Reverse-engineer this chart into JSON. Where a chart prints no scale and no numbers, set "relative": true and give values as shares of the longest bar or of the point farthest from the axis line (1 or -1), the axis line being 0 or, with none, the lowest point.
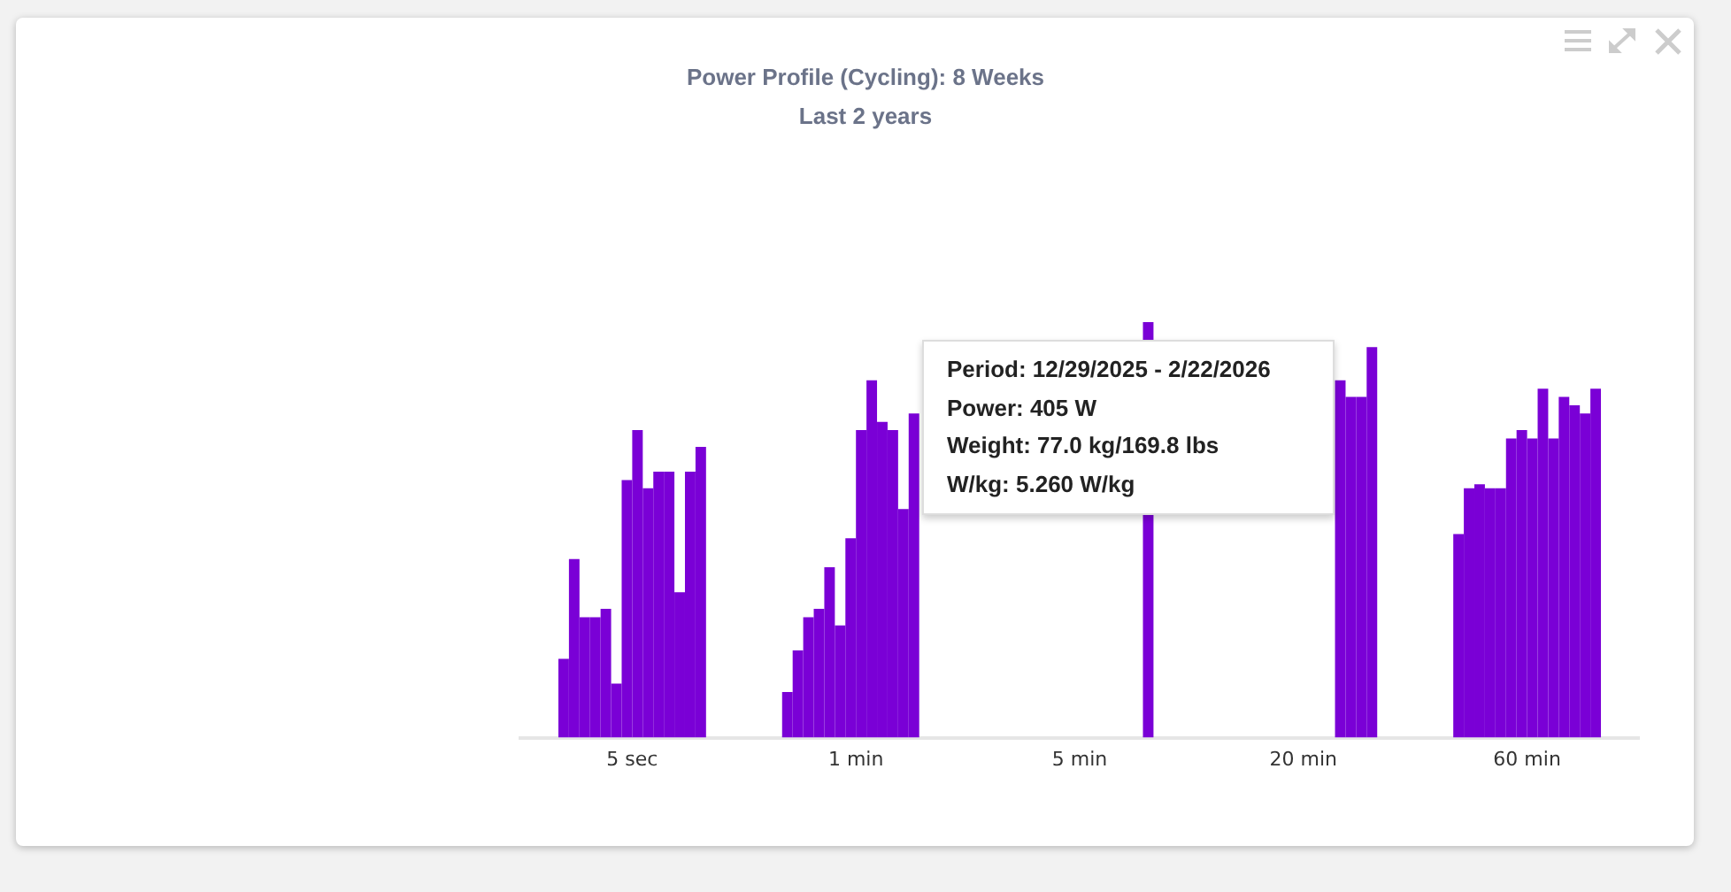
{
  "chart_data": {
    "type": "bar",
    "title": "Power Profile (Cycling): 8 Weeks",
    "subtitle": "Last 2 years",
    "relative": true,
    "legend": false,
    "grid": false,
    "categories": [
      "5 sec",
      "1 min",
      "5 min",
      "20 min",
      "60 min"
    ],
    "annotations": [
      "Period: 12/29/2025 - 2/22/2026",
      "Power: 405 W",
      "Weight: 77.0 kg/169.8 lbs",
      "W/kg: 5.260 W/kg"
    ],
    "series": [
      {
        "color": "#7a00d6",
        "values": [
          0.19,
          0.11,
          null,
          null,
          0.49
        ]
      },
      {
        "color": "#7a00d6",
        "values": [
          0.43,
          0.21,
          null,
          null,
          0.6
        ]
      },
      {
        "color": "#7a00d6",
        "values": [
          0.29,
          0.29,
          null,
          null,
          0.61
        ]
      },
      {
        "color": "#7a00d6",
        "values": [
          0.29,
          0.31,
          null,
          null,
          0.6
        ]
      },
      {
        "color": "#7a00d6",
        "values": [
          0.31,
          0.41,
          null,
          null,
          0.6
        ]
      },
      {
        "color": "#7a00d6",
        "values": [
          0.13,
          0.27,
          null,
          null,
          0.72
        ]
      },
      {
        "color": "#7a00d6",
        "values": [
          0.62,
          0.48,
          null,
          null,
          0.74
        ]
      },
      {
        "color": "#7a00d6",
        "values": [
          0.74,
          0.74,
          null,
          null,
          0.72
        ]
      },
      {
        "color": "#7a00d6",
        "values": [
          0.6,
          0.86,
          null,
          null,
          0.84
        ]
      },
      {
        "color": "#7a00d6",
        "values": [
          0.64,
          0.76,
          null,
          null,
          0.72
        ]
      },
      {
        "color": "#7a00d6",
        "values": [
          0.64,
          0.74,
          null,
          0.86,
          0.82
        ]
      },
      {
        "color": "#7a00d6",
        "values": [
          0.35,
          0.55,
          null,
          0.82,
          0.8
        ]
      },
      {
        "color": "#7a00d6",
        "values": [
          0.64,
          0.78,
          null,
          0.82,
          0.78
        ]
      },
      {
        "color": "#7a00d6",
        "values": [
          0.7,
          null,
          1.0,
          0.94,
          0.84
        ]
      }
    ]
  }
}
